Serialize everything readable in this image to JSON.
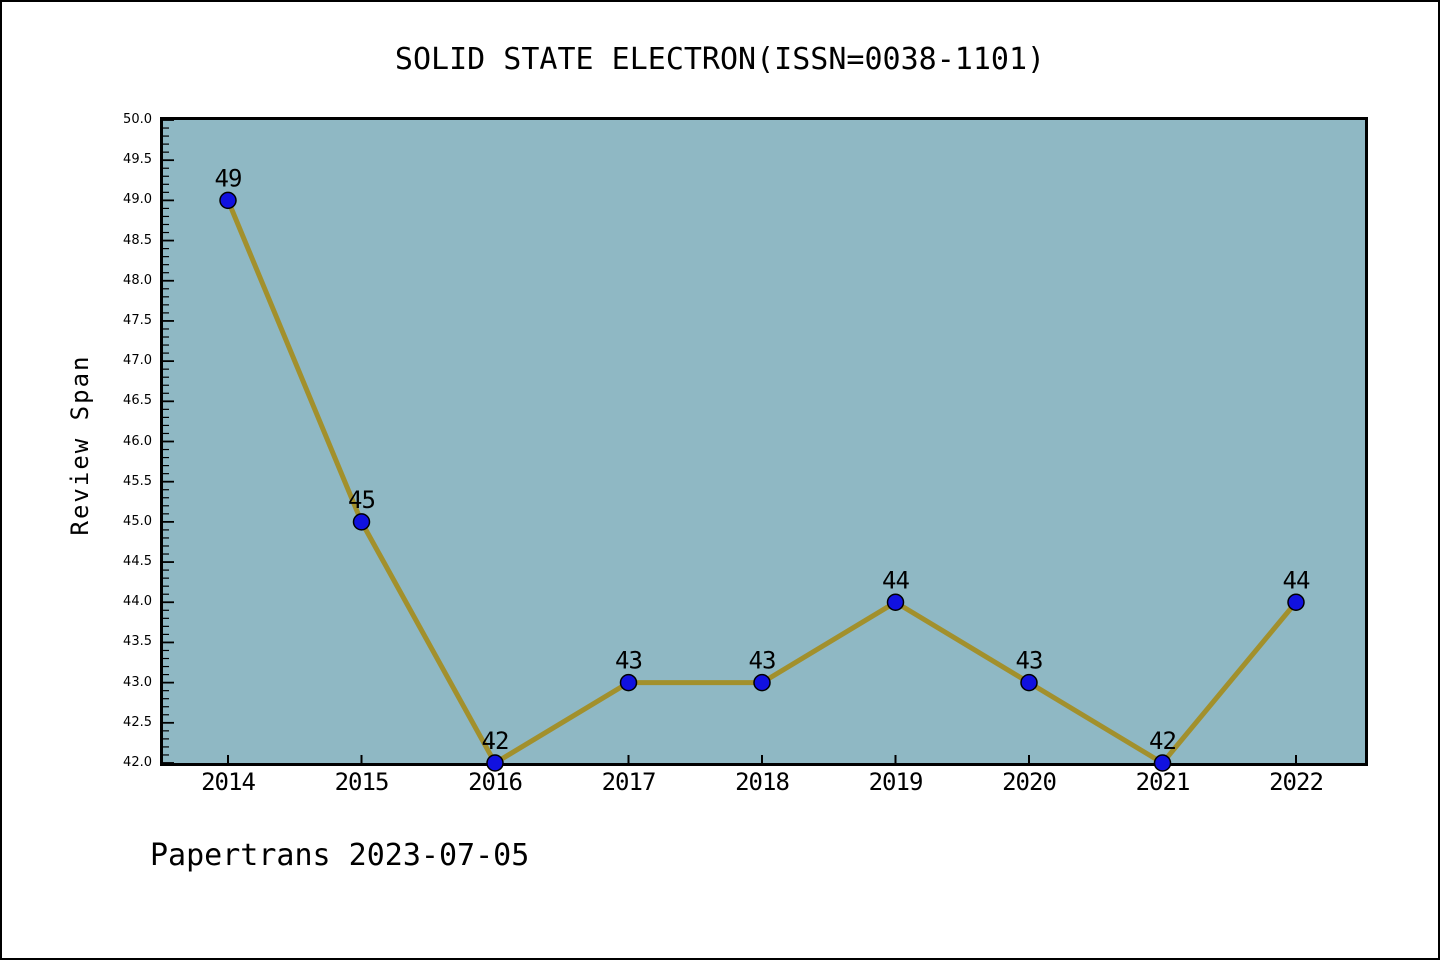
{
  "footer": {
    "text": "Papertrans 2023-07-05"
  },
  "chart_data": {
    "type": "line",
    "title": "SOLID STATE ELECTRON(ISSN=0038-1101)",
    "ylabel": "Review Span",
    "xlabel": "",
    "categories": [
      "2014",
      "2015",
      "2016",
      "2017",
      "2018",
      "2019",
      "2020",
      "2021",
      "2022"
    ],
    "values": [
      49,
      45,
      42,
      43,
      43,
      44,
      43,
      42,
      44
    ],
    "point_labels": [
      "49",
      "45",
      "42",
      "43",
      "43",
      "44",
      "43",
      "42",
      "44"
    ],
    "ylim": [
      42.0,
      50.0
    ],
    "y_major_step": 0.5,
    "y_minor_step": 0.1,
    "tick_direction": "in",
    "grid": false,
    "legend": "none",
    "line_color": "#a2902c",
    "line_width": 5,
    "marker_color": "#1111e0",
    "marker_edge_color": "#000000",
    "marker_radius": 8,
    "plot_background": "#8fb8c4",
    "page_background": "#ffffff",
    "text_color": "#000000"
  }
}
